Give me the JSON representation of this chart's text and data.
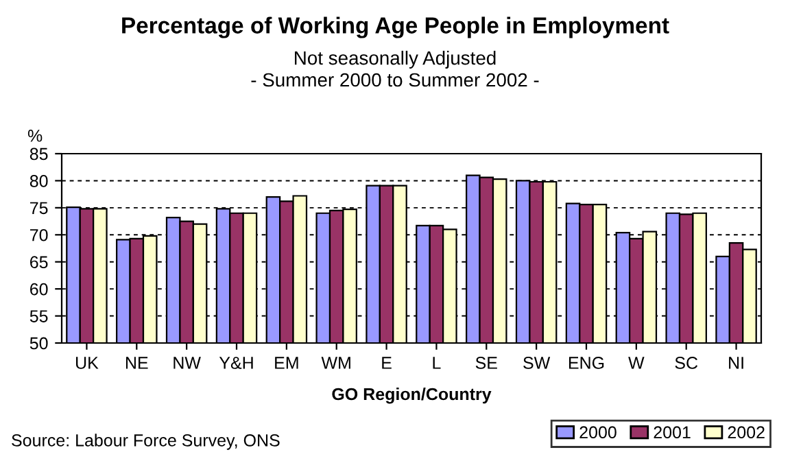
{
  "chart_data": {
    "type": "bar",
    "title": "Percentage of Working Age People in Employment",
    "subtitle": "Not seasonally Adjusted\n- Summer 2000 to Summer 2002 -",
    "ylabel": "%",
    "xlabel": "GO Region/Country",
    "annotations": [
      "Source: Labour Force Survey, ONS"
    ],
    "categories": [
      "UK",
      "NE",
      "NW",
      "Y&H",
      "EM",
      "WM",
      "E",
      "L",
      "SE",
      "SW",
      "ENG",
      "W",
      "SC",
      "NI"
    ],
    "series": [
      {
        "name": "2000",
        "color": "#9999ff",
        "values": [
          75.1,
          69.1,
          73.2,
          74.8,
          77.0,
          74.0,
          79.1,
          71.7,
          81.0,
          80.0,
          75.8,
          70.4,
          74.0,
          66.0
        ]
      },
      {
        "name": "2001",
        "color": "#993366",
        "values": [
          74.8,
          69.3,
          72.5,
          74.0,
          76.2,
          74.5,
          79.1,
          71.7,
          80.6,
          79.8,
          75.6,
          69.3,
          73.8,
          68.5
        ]
      },
      {
        "name": "2002",
        "color": "#ffffcc",
        "values": [
          74.8,
          69.8,
          72.0,
          74.0,
          77.2,
          74.7,
          79.1,
          71.0,
          80.3,
          79.8,
          75.6,
          70.6,
          74.0,
          67.3
        ]
      }
    ],
    "ylim": [
      50,
      85
    ],
    "yticks": [
      50,
      55,
      60,
      65,
      70,
      75,
      80,
      85
    ],
    "grid": "y",
    "legend": "bottom right"
  }
}
